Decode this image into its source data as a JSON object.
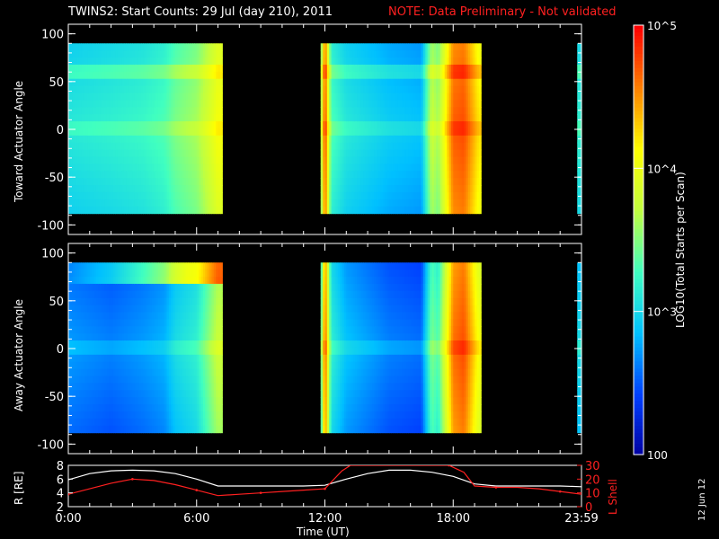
{
  "title": "TWINS2: Start Counts: 29 Jul (day 210), 2011",
  "note": "NOTE: Data Preliminary - Not validated",
  "date_stamp": "12 Jun 12",
  "colorbar": {
    "label": "LOG10(Total Starts per Scan)",
    "range": [
      100,
      100000
    ],
    "tick_labels": [
      "10^5",
      "10^4",
      "10^3",
      "100"
    ],
    "tick_values": [
      100000,
      10000,
      1000,
      100
    ],
    "colors": [
      "#0000a0",
      "#0040ff",
      "#00c0ff",
      "#40ffc0",
      "#c0ff40",
      "#ffff00",
      "#ff8000",
      "#ff0000"
    ]
  },
  "chart_data": [
    {
      "type": "heatmap",
      "name": "toward-panel",
      "ylabel": "Toward Actuator Angle",
      "xlim": [
        0,
        24
      ],
      "ylim": [
        -110,
        110
      ],
      "yticks": [
        100,
        50,
        0,
        -50,
        -100
      ],
      "angle_range": [
        -88,
        90
      ],
      "data_intervals": [
        [
          0,
          7.2
        ],
        [
          11.8,
          19.3
        ],
        [
          23.8,
          24.0
        ]
      ],
      "level_by_time": [
        {
          "t": 0.0,
          "level": 0.38
        },
        {
          "t": 2.0,
          "level": 0.4
        },
        {
          "t": 3.5,
          "level": 0.42
        },
        {
          "t": 4.5,
          "level": 0.45
        },
        {
          "t": 5.0,
          "level": 0.5
        },
        {
          "t": 6.0,
          "level": 0.55
        },
        {
          "t": 6.5,
          "level": 0.62
        },
        {
          "t": 7.0,
          "level": 0.7
        },
        {
          "t": 11.8,
          "level": 0.5
        },
        {
          "t": 12.0,
          "level": 0.95
        },
        {
          "t": 12.3,
          "level": 0.45
        },
        {
          "t": 13.0,
          "level": 0.38
        },
        {
          "t": 15.0,
          "level": 0.32
        },
        {
          "t": 16.5,
          "level": 0.3
        },
        {
          "t": 17.0,
          "level": 0.6
        },
        {
          "t": 17.3,
          "level": 0.55
        },
        {
          "t": 17.8,
          "level": 0.8
        },
        {
          "t": 18.0,
          "level": 0.9
        },
        {
          "t": 18.5,
          "level": 0.92
        },
        {
          "t": 19.2,
          "level": 0.75
        },
        {
          "t": 23.8,
          "level": 0.4
        }
      ]
    },
    {
      "type": "heatmap",
      "name": "away-panel",
      "ylabel": "Away Actuator Angle",
      "xlim": [
        0,
        24
      ],
      "ylim": [
        -110,
        110
      ],
      "yticks": [
        100,
        50,
        0,
        -50,
        -100
      ],
      "angle_range": [
        -88,
        90
      ],
      "data_intervals": [
        [
          0,
          7.2
        ],
        [
          11.8,
          19.3
        ],
        [
          23.8,
          24.0
        ]
      ],
      "level_by_time": [
        {
          "t": 0.0,
          "level": 0.25
        },
        {
          "t": 2.0,
          "level": 0.22
        },
        {
          "t": 3.5,
          "level": 0.25
        },
        {
          "t": 4.5,
          "level": 0.28
        },
        {
          "t": 5.0,
          "level": 0.35
        },
        {
          "t": 6.0,
          "level": 0.4
        },
        {
          "t": 6.5,
          "level": 0.5
        },
        {
          "t": 7.0,
          "level": 0.6
        },
        {
          "t": 11.8,
          "level": 0.4
        },
        {
          "t": 12.0,
          "level": 0.92
        },
        {
          "t": 12.3,
          "level": 0.4
        },
        {
          "t": 13.0,
          "level": 0.3
        },
        {
          "t": 15.0,
          "level": 0.22
        },
        {
          "t": 16.5,
          "level": 0.2
        },
        {
          "t": 17.0,
          "level": 0.5
        },
        {
          "t": 17.3,
          "level": 0.45
        },
        {
          "t": 17.8,
          "level": 0.75
        },
        {
          "t": 18.0,
          "level": 0.88
        },
        {
          "t": 18.5,
          "level": 0.92
        },
        {
          "t": 19.2,
          "level": 0.7
        },
        {
          "t": 23.8,
          "level": 0.35
        }
      ]
    },
    {
      "type": "line",
      "name": "orbit-panel",
      "ylabel": "R [RE]",
      "ylabel_right": "L Shell",
      "xlabel": "Time (UT)",
      "xlim": [
        0,
        24
      ],
      "ylim": [
        2,
        8
      ],
      "yticks": [
        8,
        6,
        4,
        2
      ],
      "ylim_right": [
        0,
        30
      ],
      "yticks_right": [
        30,
        20,
        10,
        0
      ],
      "xtick_labels": [
        "0:00",
        "6:00",
        "12:00",
        "18:00",
        "23:59"
      ],
      "xtick_values": [
        0,
        6,
        12,
        18,
        24
      ],
      "series": [
        {
          "axis": "left",
          "color": "#ffffff",
          "x": [
            0,
            1,
            2,
            3,
            4,
            5,
            6,
            7,
            8,
            9,
            10,
            11,
            12,
            13,
            14,
            15,
            16,
            17,
            18,
            19,
            20,
            21,
            22,
            23,
            24
          ],
          "y": [
            5.9,
            6.8,
            7.2,
            7.3,
            7.2,
            6.8,
            6.0,
            5.0,
            5.0,
            5.0,
            5.0,
            5.0,
            5.1,
            6.0,
            6.8,
            7.3,
            7.3,
            7.0,
            6.4,
            5.3,
            5.0,
            5.0,
            5.0,
            5.0,
            4.9
          ]
        },
        {
          "axis": "right",
          "color": "#ff2020",
          "x": [
            0,
            1,
            2,
            3,
            4,
            5,
            6,
            7,
            8,
            9,
            10,
            11,
            12,
            12.8,
            13.2,
            17.8,
            18.5,
            19,
            20,
            21,
            22,
            23,
            24
          ],
          "y": [
            9,
            13,
            17,
            20,
            19,
            16,
            12,
            8,
            9,
            10,
            11,
            12,
            13,
            26,
            30,
            30,
            25,
            15,
            14,
            14,
            13,
            11,
            9
          ]
        }
      ]
    }
  ]
}
